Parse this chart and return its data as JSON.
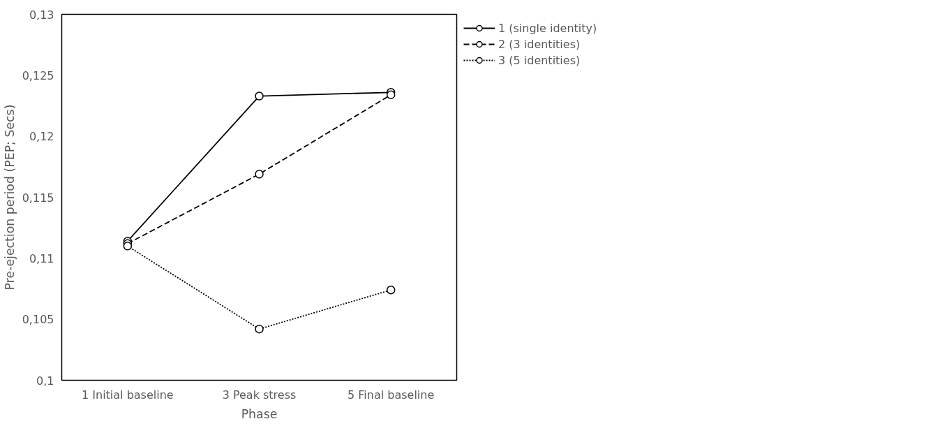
{
  "chart_data": {
    "type": "line",
    "xlabel": "Phase",
    "ylabel": "Pre-ejection period (PEP; Secs)",
    "categories": [
      "1 Initial baseline",
      "3 Peak stress",
      "5 Final baseline"
    ],
    "ylim": [
      0.1,
      0.13
    ],
    "yticks": [
      {
        "value": 0.1,
        "label": "0,1"
      },
      {
        "value": 0.105,
        "label": "0,105"
      },
      {
        "value": 0.11,
        "label": "0,11"
      },
      {
        "value": 0.115,
        "label": "0,115"
      },
      {
        "value": 0.12,
        "label": "0,12"
      },
      {
        "value": 0.125,
        "label": "0,125"
      },
      {
        "value": 0.13,
        "label": "0,13"
      }
    ],
    "grid": false,
    "legend": "top right",
    "marker": "circle",
    "series": [
      {
        "name": "1 (single identity)",
        "color": "#000000",
        "line_style": "solid",
        "values": [
          0.1114,
          0.1233,
          0.1236
        ]
      },
      {
        "name": "2 (3 identities)",
        "color": "#000000",
        "line_style": "dashed",
        "values": [
          0.1112,
          0.1169,
          0.1234
        ]
      },
      {
        "name": "3 (5 identities)",
        "color": "#000000",
        "line_style": "dotted",
        "values": [
          0.111,
          0.1042,
          0.1074
        ]
      }
    ]
  }
}
